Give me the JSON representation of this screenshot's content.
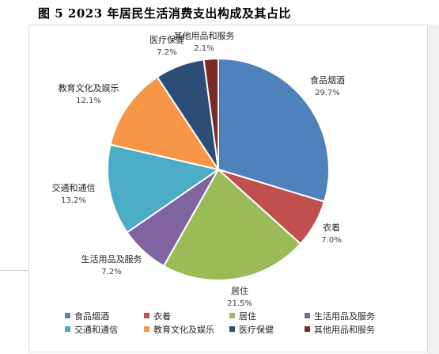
{
  "figure_title": "图 5   2023 年居民生活消费支出构成及其占比",
  "chart_data": {
    "type": "pie",
    "labels": [
      "食品烟酒",
      "衣着",
      "居住",
      "生活用品及服务",
      "交通和通信",
      "教育文化及娱乐",
      "医疗保健",
      "其他用品和服务"
    ],
    "values": [
      29.7,
      7.0,
      21.5,
      7.2,
      13.2,
      12.1,
      7.2,
      2.1
    ],
    "value_labels": [
      "29.7%",
      "7.0%",
      "21.5%",
      "7.2%",
      "13.2%",
      "12.1%",
      "7.2%",
      "2.1%"
    ],
    "colors": [
      "#4f81bd",
      "#c0504d",
      "#9bbb59",
      "#8064a2",
      "#4bacc6",
      "#f79646",
      "#2c4d75",
      "#772c2a"
    ],
    "legend_position": "bottom"
  }
}
